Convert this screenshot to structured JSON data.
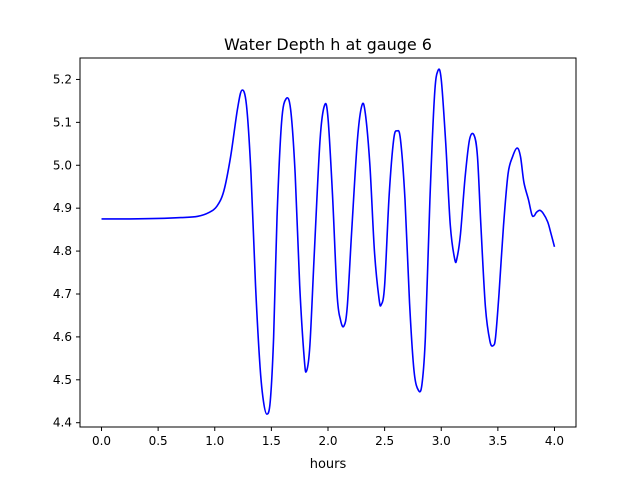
{
  "chart_data": {
    "type": "line",
    "title": "Water Depth h at gauge 6",
    "xlabel": "hours",
    "ylabel": "",
    "xlim": [
      -0.19,
      4.19
    ],
    "ylim": [
      4.39,
      5.25
    ],
    "xticks": [
      0.0,
      0.5,
      1.0,
      1.5,
      2.0,
      2.5,
      3.0,
      3.5,
      4.0
    ],
    "xtick_labels": [
      "0.0",
      "0.5",
      "1.0",
      "1.5",
      "2.0",
      "2.5",
      "3.0",
      "3.5",
      "4.0"
    ],
    "yticks": [
      4.4,
      4.5,
      4.6,
      4.7,
      4.8,
      4.9,
      5.0,
      5.1,
      5.2
    ],
    "ytick_labels": [
      "4.4",
      "4.5",
      "4.6",
      "4.7",
      "4.8",
      "4.9",
      "5.0",
      "5.1",
      "5.2"
    ],
    "grid": false,
    "legend": null,
    "series": [
      {
        "color": "#0000ff",
        "x": [
          0.0,
          0.25,
          0.5,
          0.7,
          0.85,
          0.95,
          1.02,
          1.08,
          1.14,
          1.2,
          1.24,
          1.28,
          1.32,
          1.36,
          1.4,
          1.43,
          1.46,
          1.49,
          1.52,
          1.55,
          1.59,
          1.63,
          1.67,
          1.71,
          1.75,
          1.79,
          1.81,
          1.84,
          1.88,
          1.93,
          1.97,
          2.0,
          2.04,
          2.08,
          2.11,
          2.14,
          2.17,
          2.21,
          2.26,
          2.3,
          2.33,
          2.37,
          2.41,
          2.45,
          2.47,
          2.5,
          2.54,
          2.58,
          2.61,
          2.64,
          2.68,
          2.72,
          2.76,
          2.8,
          2.83,
          2.86,
          2.9,
          2.94,
          2.97,
          3.0,
          3.04,
          3.08,
          3.12,
          3.14,
          3.17,
          3.21,
          3.25,
          3.29,
          3.32,
          3.35,
          3.39,
          3.43,
          3.46,
          3.48,
          3.51,
          3.55,
          3.59,
          3.63,
          3.67,
          3.7,
          3.73,
          3.77,
          3.8,
          3.82,
          3.84,
          3.87,
          3.9,
          3.94,
          3.97,
          4.0
        ],
        "y": [
          4.875,
          4.875,
          4.876,
          4.878,
          4.881,
          4.89,
          4.905,
          4.94,
          5.02,
          5.13,
          5.175,
          5.14,
          4.98,
          4.72,
          4.53,
          4.45,
          4.42,
          4.45,
          4.6,
          4.88,
          5.1,
          5.155,
          5.13,
          4.98,
          4.72,
          4.55,
          4.52,
          4.58,
          4.8,
          5.06,
          5.14,
          5.11,
          4.93,
          4.7,
          4.64,
          4.625,
          4.67,
          4.85,
          5.06,
          5.14,
          5.12,
          5.0,
          4.8,
          4.69,
          4.675,
          4.72,
          4.93,
          5.06,
          5.08,
          5.06,
          4.92,
          4.68,
          4.52,
          4.475,
          4.49,
          4.6,
          4.92,
          5.16,
          5.22,
          5.2,
          5.05,
          4.86,
          4.78,
          4.785,
          4.84,
          4.97,
          5.06,
          5.07,
          5.02,
          4.86,
          4.67,
          4.59,
          4.58,
          4.6,
          4.7,
          4.86,
          4.98,
          5.02,
          5.04,
          5.02,
          4.96,
          4.92,
          4.885,
          4.882,
          4.89,
          4.895,
          4.888,
          4.868,
          4.84,
          4.81
        ]
      }
    ]
  }
}
